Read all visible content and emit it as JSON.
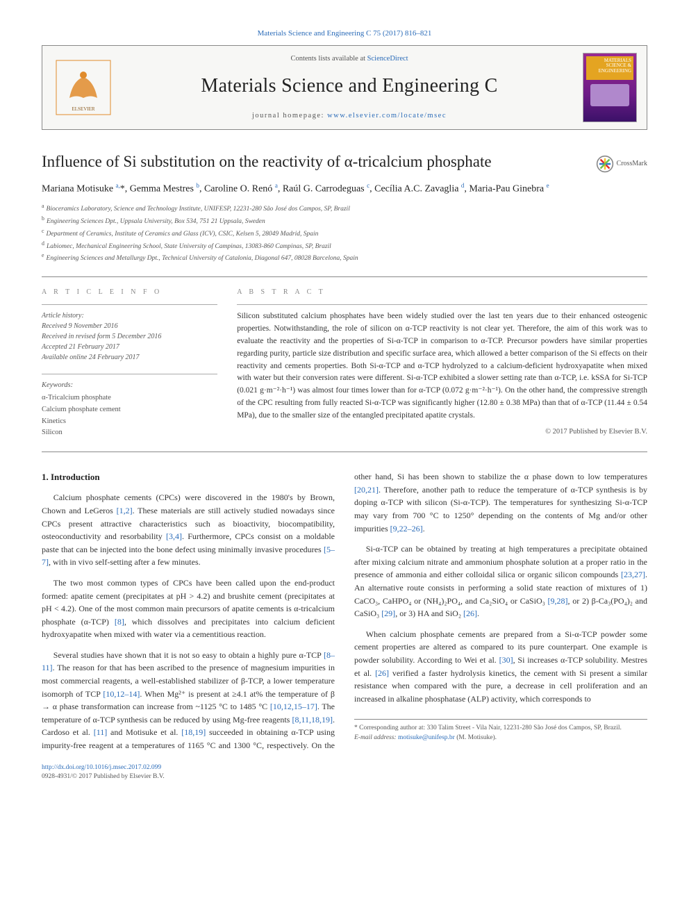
{
  "top_link_prefix": "",
  "top_link": "Materials Science and Engineering C 75 (2017) 816–821",
  "masthead": {
    "contents_prefix": "Contents lists available at ",
    "contents_link": "ScienceDirect",
    "journal_title": "Materials Science and Engineering C",
    "homepage_prefix": "journal homepage: ",
    "homepage_link": "www.elsevier.com/locate/msec",
    "cover_label_line1": "MATERIALS",
    "cover_label_line2": "SCIENCE &",
    "cover_label_line3": "ENGINEERING",
    "cover_label_sub": "C"
  },
  "crossmark_label": "CrossMark",
  "title": "Influence of Si substitution on the reactivity of α-tricalcium phosphate",
  "authors_html": "Mariana Motisuke <sup>a,</sup><span class='star'>*</span>, Gemma Mestres <sup>b</sup>, Caroline O. Renó <sup>a</sup>, Raúl G. Carrodeguas <sup>c</sup>, Cecília A.C. Zavaglia <sup>d</sup>, Maria-Pau Ginebra <sup>e</sup>",
  "affiliations": [
    {
      "tag": "a",
      "text": "Bioceramics Laboratory, Science and Technology Institute, UNIFESP, 12231-280 São José dos Campos, SP, Brazil"
    },
    {
      "tag": "b",
      "text": "Engineering Sciences Dpt., Uppsala University, Box 534, 751 21 Uppsala, Sweden"
    },
    {
      "tag": "c",
      "text": "Department of Ceramics, Institute of Ceramics and Glass (ICV), CSIC, Kelsen 5, 28049 Madrid, Spain"
    },
    {
      "tag": "d",
      "text": "Labiomec, Mechanical Engineering School, State University of Campinas, 13083-860 Campinas, SP, Brazil"
    },
    {
      "tag": "e",
      "text": "Engineering Sciences and Metallurgy Dpt., Technical University of Catalonia, Diagonal 647, 08028 Barcelona, Spain"
    }
  ],
  "info_label": "A R T I C L E   I N F O",
  "abstract_label": "A B S T R A C T",
  "history": {
    "label": "Article history:",
    "received": "Received 9 November 2016",
    "revised": "Received in revised form 5 December 2016",
    "accepted": "Accepted 21 February 2017",
    "online": "Available online 24 February 2017"
  },
  "keywords_label": "Keywords:",
  "keywords": [
    "α-Tricalcium phosphate",
    "Calcium phosphate cement",
    "Kinetics",
    "Silicon"
  ],
  "abstract": "Silicon substituted calcium phosphates have been widely studied over the last ten years due to their enhanced osteogenic properties. Notwithstanding, the role of silicon on α-TCP reactivity is not clear yet. Therefore, the aim of this work was to evaluate the reactivity and the properties of Si-α-TCP in comparison to α-TCP. Precursor powders have similar properties regarding purity, particle size distribution and specific surface area, which allowed a better comparison of the Si effects on their reactivity and cements properties. Both Si-α-TCP and α-TCP hydrolyzed to a calcium-deficient hydroxyapatite when mixed with water but their conversion rates were different. Si-α-TCP exhibited a slower setting rate than α-TCP, i.e. kSSA for Si-TCP (0.021 g·m⁻²·h⁻¹) was almost four times lower than for α-TCP (0.072 g·m⁻²·h⁻¹). On the other hand, the compressive strength of the CPC resulting from fully reacted Si-α-TCP was significantly higher (12.80 ± 0.38 MPa) than that of α-TCP (11.44 ± 0.54 MPa), due to the smaller size of the entangled precipitated apatite crystals.",
  "abstract_copyright": "© 2017 Published by Elsevier B.V.",
  "intro_heading": "1. Introduction",
  "body_paragraphs": [
    "Calcium phosphate cements (CPCs) were discovered in the 1980's by Brown, Chown and LeGeros <span class='cite'>[1,2]</span>. These materials are still actively studied nowadays since CPCs present attractive characteristics such as bioactivity, biocompatibility, osteoconductivity and resorbability <span class='cite'>[3,4]</span>. Furthermore, CPCs consist on a moldable paste that can be injected into the bone defect using minimally invasive procedures <span class='cite'>[5–7]</span>, with in vivo self-setting after a few minutes.",
    "The two most common types of CPCs have been called upon the end-product formed: apatite cement (precipitates at pH > 4.2) and brushite cement (precipitates at pH < 4.2). One of the most common main precursors of apatite cements is α-tricalcium phosphate (α-TCP) <span class='cite'>[8]</span>, which dissolves and precipitates into calcium deficient hydroxyapatite when mixed with water via a cementitious reaction.",
    "Several studies have shown that it is not so easy to obtain a highly pure α-TCP <span class='cite'>[8–11]</span>. The reason for that has been ascribed to the presence of magnesium impurities in most commercial reagents, a well-established stabilizer of β-TCP, a lower temperature isomorph of TCP <span class='cite'>[10,12–14]</span>. When Mg²⁺ is present at ≥4.1 at% the temperature of β → α phase transformation can increase from ~1125 °C to 1485 °C <span class='cite'>[10,12,15–17]</span>. The temperature of α-TCP synthesis can be reduced by using Mg-free reagents <span class='cite'>[8,11,18,19]</span>. Cardoso et al. <span class='cite'>[11]</span> and Motisuke et al. <span class='cite'>[18,19]</span> succeeded in obtaining α-TCP using impurity-free reagent at a temperatures of 1165 °C and 1300 °C, respectively. On the other hand, Si has been shown to stabilize the α phase down to low temperatures <span class='cite'>[20,21]</span>. Therefore, another path to reduce the temperature of α-TCP synthesis is by doping α-TCP with silicon (Si-α-TCP). The temperatures for synthesizing Si-α-TCP may vary from 700 °C to 1250° depending on the contents of Mg and/or other impurities <span class='cite'>[9,22–26]</span>.",
    "Si-α-TCP can be obtained by treating at high temperatures a precipitate obtained after mixing calcium nitrate and ammonium phosphate solution at a proper ratio in the presence of ammonia and either colloidal silica or organic silicon compounds <span class='cite'>[23,27]</span>. An alternative route consists in performing a solid state reaction of mixtures of 1) CaCO₃, CaHPO₄ or (NH₄)₂PO₄, and Ca₂SiO₄ or CaSiO₃ <span class='cite'>[9,28]</span>, or 2) β-Ca₃(PO₄)₂ and CaSiO₃ <span class='cite'>[29]</span>, or 3) HA and SiO₂ <span class='cite'>[26]</span>.",
    "When calcium phosphate cements are prepared from a Si-α-TCP powder some cement properties are altered as compared to its pure counterpart. One example is powder solubility. According to Wei et al. <span class='cite'>[30]</span>, Si increases α-TCP solubility. Mestres et al. <span class='cite'>[26]</span> verified a faster hydrolysis kinetics, the cement with Si present a similar resistance when compared with the pure, a decrease in cell proliferation and an increased in alkaline phosphatase (ALP) activity, which corresponds to"
  ],
  "footnote": {
    "corresponding": "* Corresponding author at: 330 Talim Street - Vila Nair, 12231-280 São José dos Campos, SP, Brazil.",
    "email_label": "E-mail address: ",
    "email": "motisuke@unifesp.br",
    "email_who": " (M. Motisuke)."
  },
  "footer": {
    "doi": "http://dx.doi.org/10.1016/j.msec.2017.02.099",
    "issn_line": "0928-4931/© 2017 Published by Elsevier B.V."
  },
  "colors": {
    "link": "#2a6bb8",
    "text": "#333333",
    "muted": "#555555",
    "rule": "#888888",
    "cover_grad_top": "#9a2a90",
    "cover_grad_bot": "#3b1168",
    "cover_band": "#e4a421"
  }
}
